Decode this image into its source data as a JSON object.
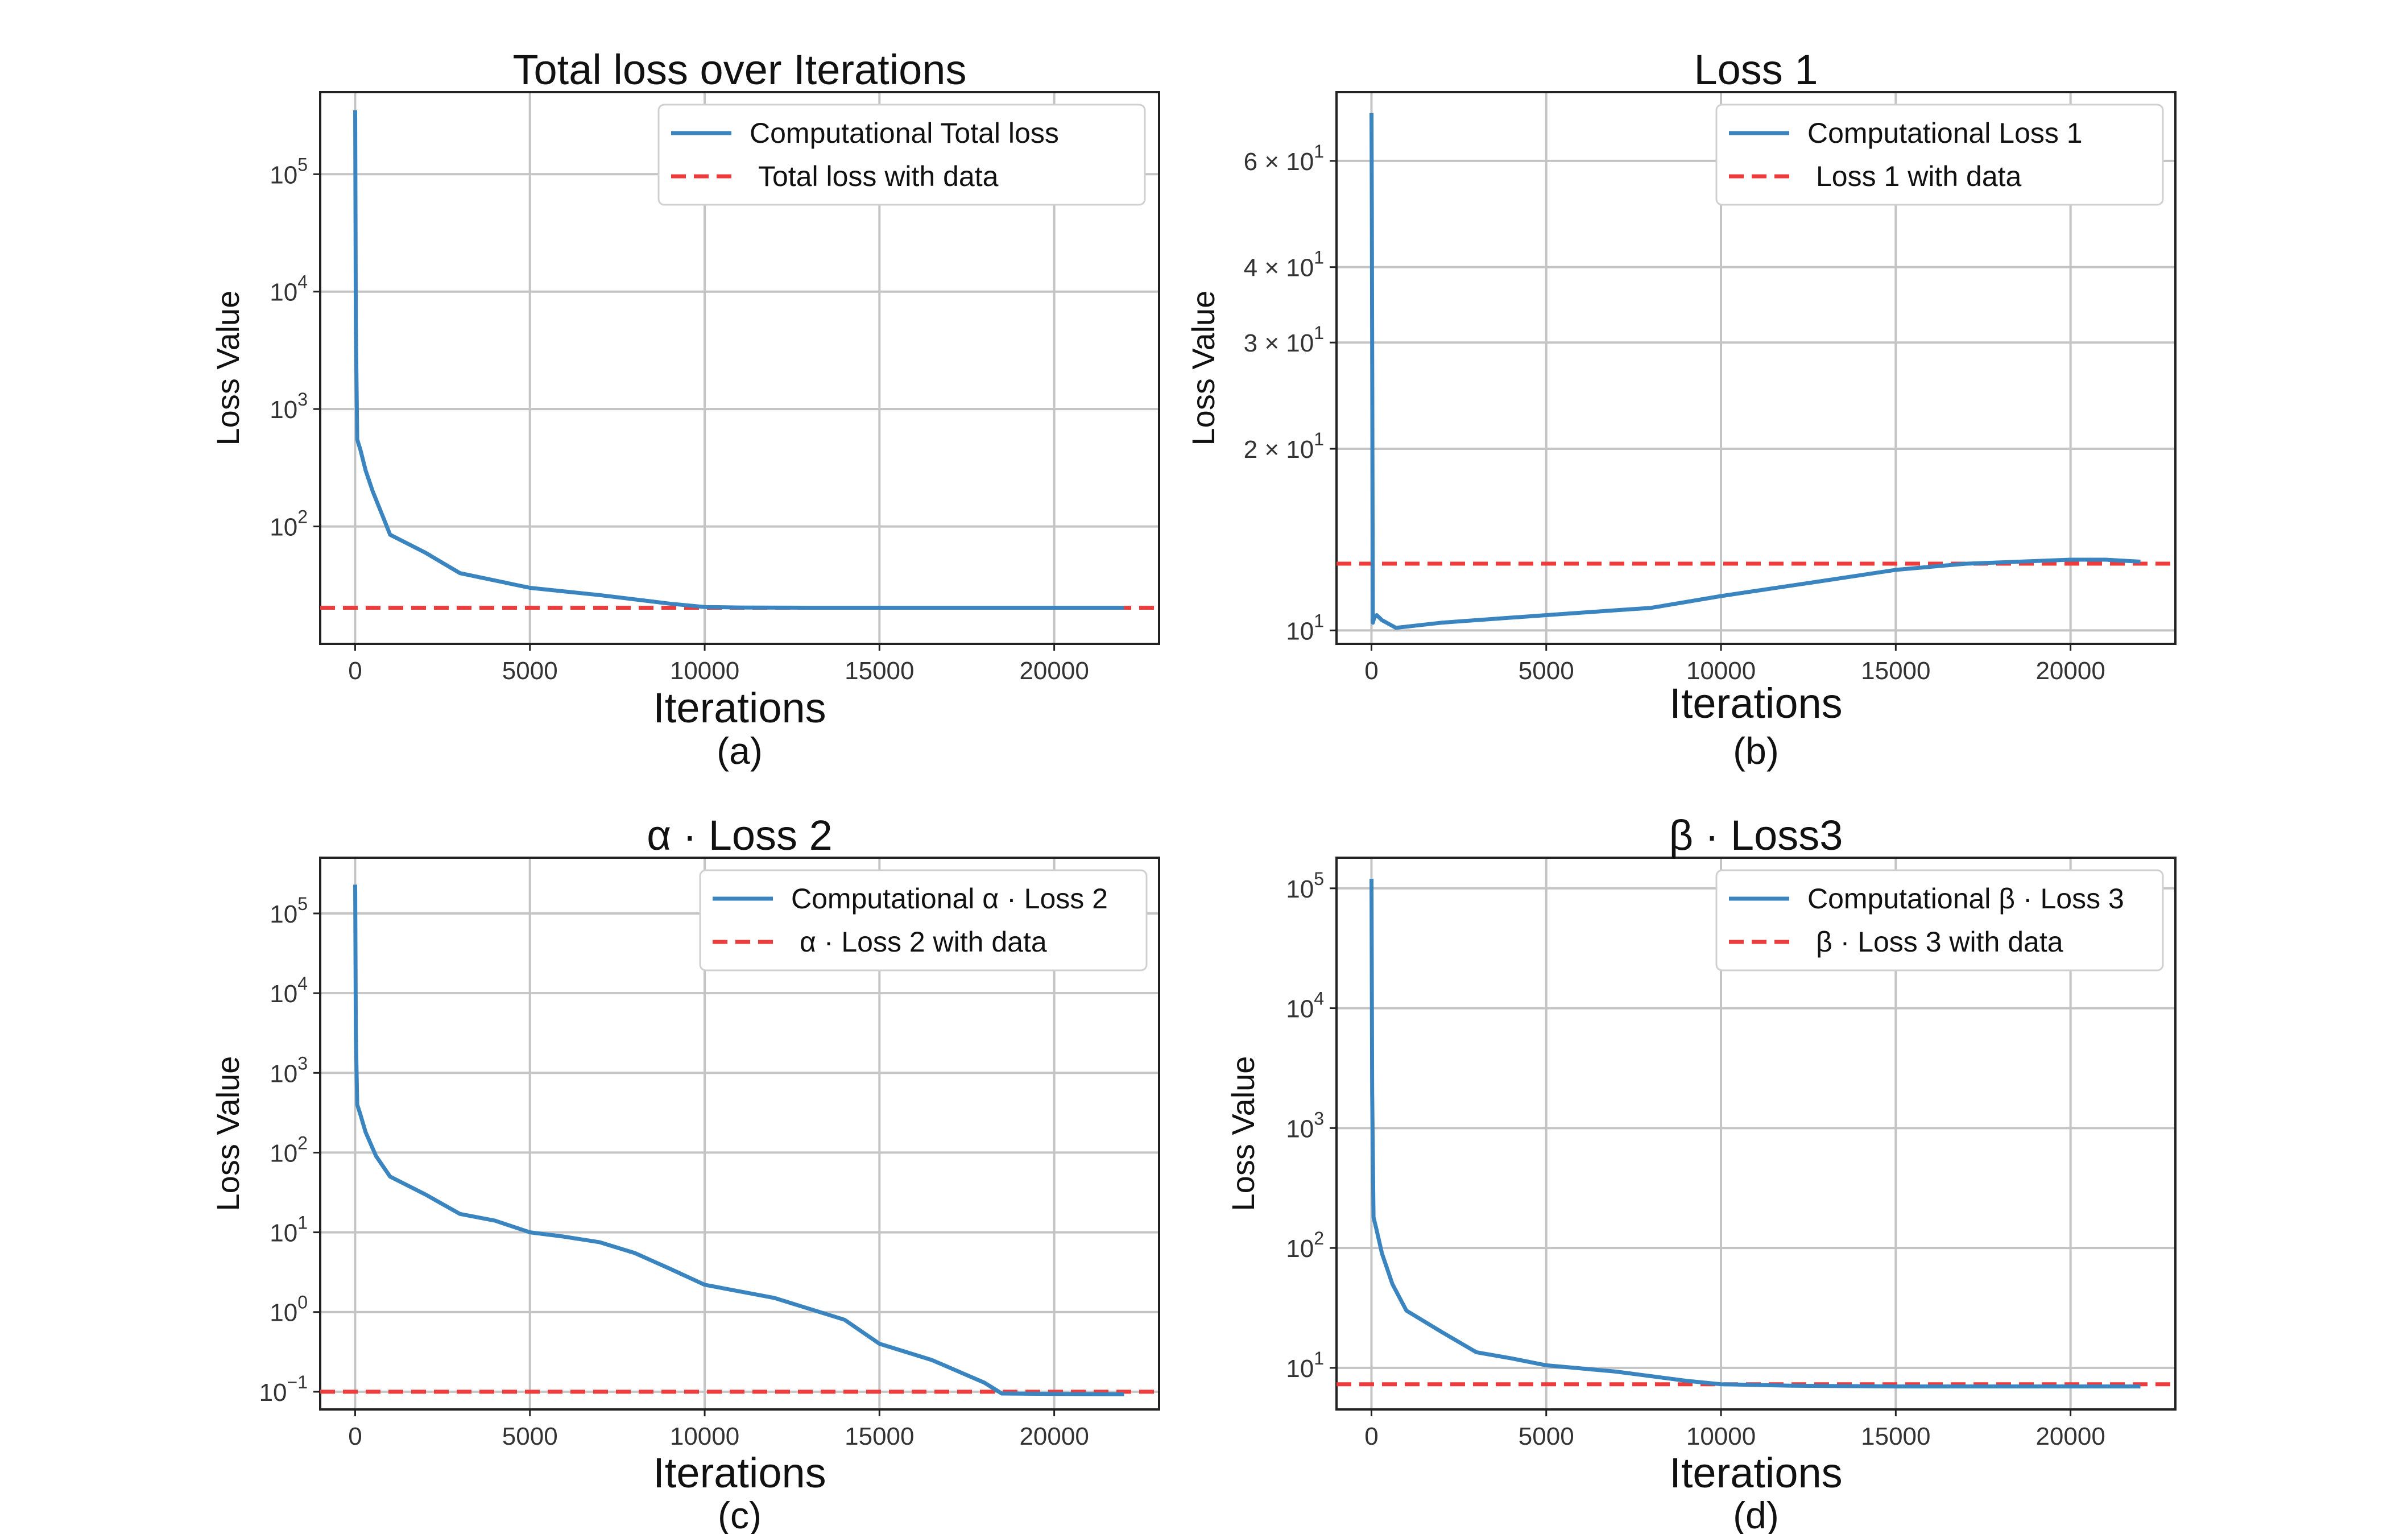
{
  "figure": {
    "panels": [
      {
        "title": "Total loss over Iterations",
        "xlabel": "Iterations",
        "ylabel": "Loss Value",
        "caption": "(a)"
      },
      {
        "title": "Loss 1",
        "xlabel": "Iterations",
        "ylabel": "Loss Value",
        "caption": "(b)"
      },
      {
        "title": "α · Loss 2",
        "xlabel": "Iterations",
        "ylabel": "Loss Value",
        "caption": "(c)"
      },
      {
        "title": "β · Loss3",
        "xlabel": "Iterations",
        "ylabel": "Loss Value",
        "caption": "(d)"
      }
    ]
  },
  "colors": {
    "computational": "#3a85c0",
    "data": "#ee3b3b",
    "grid": "#c4c4c4",
    "axes": "#222222"
  },
  "chart_data": [
    {
      "type": "line",
      "title": "Total loss over Iterations",
      "xlabel": "Iterations",
      "ylabel": "Loss Value",
      "yscale": "log",
      "xlim": [
        -1000,
        23000
      ],
      "ylim": [
        10,
        500000
      ],
      "xticks": [
        0,
        5000,
        10000,
        15000,
        20000
      ],
      "yticks": [
        {
          "v": 100,
          "label": "10^2"
        },
        {
          "v": 1000,
          "label": "10^3"
        },
        {
          "v": 10000,
          "label": "10^4"
        },
        {
          "v": 100000,
          "label": "10^5"
        }
      ],
      "grid": true,
      "legend": "top-right",
      "series": [
        {
          "name": "Computational Total loss",
          "style": "solid",
          "x": [
            0,
            20,
            60,
            150,
            300,
            500,
            800,
            1000,
            2000,
            3000,
            5000,
            7000,
            9000,
            10000,
            11000,
            13000,
            15000,
            18000,
            20000,
            22000
          ],
          "y": [
            350000,
            5000,
            550,
            450,
            300,
            200,
            120,
            85,
            60,
            40,
            30,
            26,
            22,
            20.6,
            20.4,
            20.3,
            20.3,
            20.3,
            20.3,
            20.3
          ]
        },
        {
          "name": "Total loss with data",
          "style": "dashed",
          "constant": 20.3
        }
      ]
    },
    {
      "type": "line",
      "title": "Loss 1",
      "xlabel": "Iterations",
      "ylabel": "Loss Value",
      "yscale": "log",
      "xlim": [
        -1000,
        23000
      ],
      "ylim": [
        9.5,
        78
      ],
      "xticks": [
        0,
        5000,
        10000,
        15000,
        20000
      ],
      "yticks": [
        {
          "v": 10,
          "label": "10^1"
        },
        {
          "v": 20,
          "label": "2 × 10^1"
        },
        {
          "v": 30,
          "label": "3 × 10^1"
        },
        {
          "v": 40,
          "label": "4 × 10^1"
        },
        {
          "v": 60,
          "label": "6 × 10^1"
        }
      ],
      "grid": true,
      "legend": "top-right",
      "series": [
        {
          "name": "Computational Loss 1",
          "style": "solid",
          "x": [
            0,
            10,
            40,
            80,
            150,
            300,
            700,
            2000,
            4000,
            5000,
            7000,
            8000,
            10000,
            13000,
            15000,
            17000,
            20000,
            21000,
            22000
          ],
          "y": [
            72,
            50,
            10.3,
            10.5,
            10.6,
            10.4,
            10.1,
            10.3,
            10.5,
            10.6,
            10.8,
            10.9,
            11.4,
            12.1,
            12.6,
            12.9,
            13.1,
            13.1,
            13.0
          ]
        },
        {
          "name": "Loss 1 with data",
          "style": "dashed",
          "constant": 12.9
        }
      ]
    },
    {
      "type": "line",
      "title": "α · Loss 2",
      "xlabel": "Iterations",
      "ylabel": "Loss Value",
      "yscale": "log",
      "xlim": [
        -1000,
        23000
      ],
      "ylim": [
        0.06,
        500000
      ],
      "xticks": [
        0,
        5000,
        10000,
        15000,
        20000
      ],
      "yticks": [
        {
          "v": 0.1,
          "label": "10^−1"
        },
        {
          "v": 1,
          "label": "10^0"
        },
        {
          "v": 10,
          "label": "10^1"
        },
        {
          "v": 100,
          "label": "10^2"
        },
        {
          "v": 1000,
          "label": "10^3"
        },
        {
          "v": 10000,
          "label": "10^4"
        },
        {
          "v": 100000,
          "label": "10^5"
        }
      ],
      "grid": true,
      "legend": "top-right",
      "series": [
        {
          "name": "Computational α · Loss 2",
          "style": "solid",
          "x": [
            0,
            20,
            60,
            150,
            300,
            600,
            1000,
            2000,
            3000,
            4000,
            5000,
            6000,
            7000,
            8000,
            9000,
            10000,
            12000,
            14000,
            15000,
            16500,
            18000,
            18500,
            20000,
            22000
          ],
          "y": [
            230000,
            3000,
            400,
            300,
            180,
            90,
            50,
            30,
            17,
            14,
            10,
            8.8,
            7.5,
            5.5,
            3.5,
            2.2,
            1.5,
            0.8,
            0.4,
            0.25,
            0.13,
            0.095,
            0.094,
            0.093
          ]
        },
        {
          "name": "α · Loss 2 with data",
          "style": "dashed",
          "constant": 0.1
        }
      ]
    },
    {
      "type": "line",
      "title": "β · Loss3",
      "xlabel": "Iterations",
      "ylabel": "Loss Value",
      "yscale": "log",
      "xlim": [
        -1000,
        23000
      ],
      "ylim": [
        4.5,
        180000
      ],
      "xticks": [
        0,
        5000,
        10000,
        15000,
        20000
      ],
      "yticks": [
        {
          "v": 10,
          "label": "10^1"
        },
        {
          "v": 100,
          "label": "10^2"
        },
        {
          "v": 1000,
          "label": "10^3"
        },
        {
          "v": 10000,
          "label": "10^4"
        },
        {
          "v": 100000,
          "label": "10^5"
        }
      ],
      "grid": true,
      "legend": "top-right",
      "series": [
        {
          "name": "Computational β · Loss 3",
          "style": "solid",
          "x": [
            0,
            20,
            60,
            150,
            300,
            600,
            1000,
            2000,
            3000,
            4000,
            5000,
            7000,
            9000,
            10000,
            12000,
            15000,
            18000,
            22000
          ],
          "y": [
            120000,
            2000,
            180,
            140,
            90,
            50,
            30,
            20,
            13.5,
            12,
            10.5,
            9.3,
            7.8,
            7.3,
            7.1,
            7.0,
            7.0,
            7.0
          ]
        },
        {
          "name": "β · Loss 3 with data",
          "style": "dashed",
          "constant": 7.3
        }
      ]
    }
  ]
}
